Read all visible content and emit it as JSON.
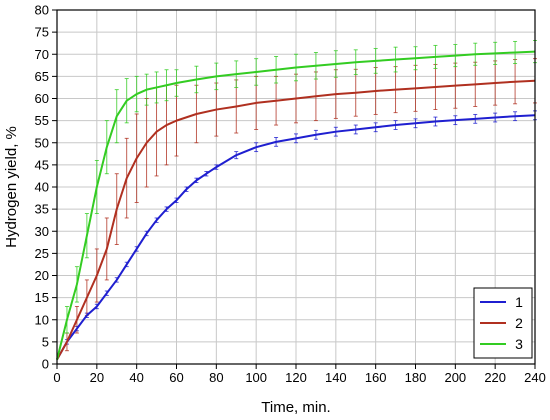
{
  "chart_data": {
    "type": "line",
    "title": "",
    "xlabel": "Time, min.",
    "ylabel": "Hydrogen yield, %",
    "xlim": [
      0,
      240
    ],
    "ylim": [
      0,
      80
    ],
    "x_ticks": [
      0,
      20,
      40,
      60,
      80,
      100,
      120,
      140,
      160,
      180,
      200,
      220,
      240
    ],
    "y_ticks": [
      0,
      5,
      10,
      15,
      20,
      25,
      30,
      35,
      40,
      45,
      50,
      55,
      60,
      65,
      70,
      75,
      80
    ],
    "grid": true,
    "legend_position": "bottom-right",
    "series": [
      {
        "name": "1",
        "color": "#1f1fd0",
        "x": [
          0,
          5,
          10,
          15,
          20,
          25,
          30,
          35,
          40,
          45,
          50,
          55,
          60,
          65,
          70,
          75,
          80,
          90,
          100,
          110,
          120,
          130,
          140,
          150,
          160,
          170,
          180,
          190,
          200,
          210,
          220,
          230,
          240
        ],
        "y": [
          1,
          5,
          8,
          11,
          13,
          16,
          19,
          22.5,
          26,
          29.5,
          32.5,
          35,
          37,
          39.5,
          41.5,
          43,
          44.5,
          47.2,
          49,
          50.2,
          51,
          51.8,
          52.5,
          53,
          53.5,
          54,
          54.4,
          54.8,
          55.1,
          55.4,
          55.7,
          56,
          56.2
        ],
        "error": [
          0,
          0.5,
          0.5,
          0.5,
          0.5,
          0.5,
          0.5,
          0.5,
          0.5,
          0.5,
          0.5,
          0.5,
          0.5,
          0.5,
          0.5,
          0.5,
          0.5,
          0.8,
          1,
          1,
          1,
          1,
          1,
          1,
          1,
          1,
          1,
          1,
          1,
          1,
          1,
          1,
          1
        ]
      },
      {
        "name": "2",
        "color": "#b03020",
        "x": [
          0,
          5,
          10,
          15,
          20,
          25,
          30,
          35,
          40,
          45,
          50,
          55,
          60,
          70,
          80,
          90,
          100,
          110,
          120,
          130,
          140,
          150,
          160,
          170,
          180,
          190,
          200,
          210,
          220,
          230,
          240
        ],
        "y": [
          1,
          5,
          10,
          15,
          20,
          26,
          35,
          42,
          46.5,
          50,
          52.5,
          54,
          55,
          56.5,
          57.5,
          58.2,
          59,
          59.5,
          60,
          60.5,
          61,
          61.3,
          61.7,
          62,
          62.3,
          62.6,
          62.9,
          63.2,
          63.5,
          63.8,
          64
        ],
        "error": [
          0,
          2,
          3,
          4,
          6,
          7,
          8,
          9,
          10,
          10,
          10,
          9,
          8,
          6.5,
          6,
          6,
          6,
          5.5,
          5.5,
          5.5,
          5.5,
          5.3,
          5.3,
          5.2,
          5.2,
          5.1,
          5.1,
          5,
          5,
          5,
          5
        ]
      },
      {
        "name": "3",
        "color": "#33cc22",
        "x": [
          0,
          5,
          10,
          15,
          20,
          25,
          30,
          35,
          40,
          45,
          50,
          55,
          60,
          70,
          80,
          90,
          100,
          110,
          120,
          130,
          140,
          150,
          160,
          170,
          180,
          190,
          200,
          210,
          220,
          230,
          240
        ],
        "y": [
          1,
          10,
          18,
          29,
          40,
          49,
          56,
          59.5,
          61,
          62,
          62.5,
          63,
          63.5,
          64.3,
          65,
          65.5,
          66,
          66.5,
          67,
          67.4,
          67.8,
          68.2,
          68.5,
          68.8,
          69.1,
          69.4,
          69.7,
          70,
          70.2,
          70.4,
          70.6
        ],
        "error": [
          0,
          3,
          4,
          5,
          6,
          6,
          6,
          5,
          4,
          3.5,
          3.5,
          3.5,
          3,
          3,
          3,
          3,
          3,
          3,
          3,
          3,
          3,
          2.8,
          2.8,
          2.8,
          2.6,
          2.6,
          2.5,
          2.5,
          2.5,
          2.5,
          2.5
        ]
      }
    ]
  }
}
